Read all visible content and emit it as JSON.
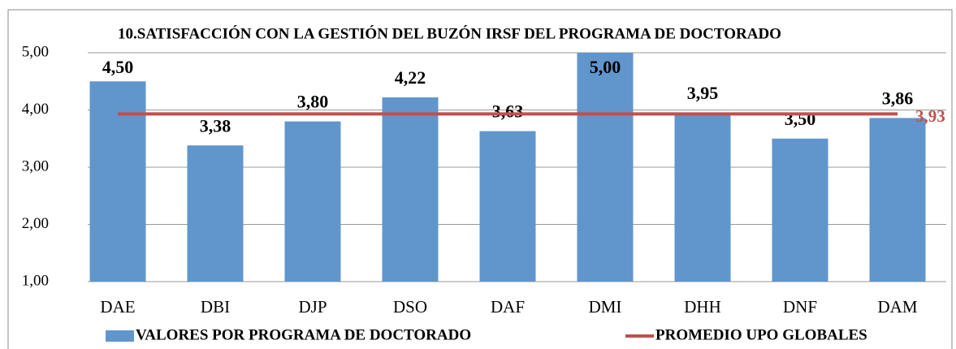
{
  "chart_data": {
    "type": "bar",
    "title": "10.SATISFACCIÓN CON LA GESTIÓN DEL BUZÓN IRSF DEL PROGRAMA DE DOCTORADO",
    "categories": [
      "DAE",
      "DBI",
      "DJP",
      "DSO",
      "DAF",
      "DMI",
      "DHH",
      "DNF",
      "DAM"
    ],
    "series": [
      {
        "name": "VALORES POR PROGRAMA DE DOCTORADO",
        "color": "#6096cc",
        "type": "bar",
        "values": [
          4.5,
          3.38,
          3.8,
          4.22,
          3.63,
          5.0,
          3.95,
          3.5,
          3.86
        ],
        "value_labels": [
          "4,50",
          "3,38",
          "3,80",
          "4,22",
          "3,63",
          "5,00",
          "3,95",
          "3,50",
          "3,86"
        ]
      },
      {
        "name": "PROMEDIO UPO GLOBALES",
        "color": "#c0504d",
        "type": "line",
        "values": [
          3.93,
          3.93,
          3.93,
          3.93,
          3.93,
          3.93,
          3.93,
          3.93,
          3.93
        ],
        "label": "3,93"
      }
    ],
    "ylim": [
      1,
      5
    ],
    "yticks": [
      {
        "value": 1,
        "label": "1,00"
      },
      {
        "value": 2,
        "label": "2,00"
      },
      {
        "value": 3,
        "label": "3,00"
      },
      {
        "value": 4,
        "label": "4,00"
      },
      {
        "value": 5,
        "label": "5,00"
      }
    ],
    "grid": true,
    "legend": "bottom"
  }
}
